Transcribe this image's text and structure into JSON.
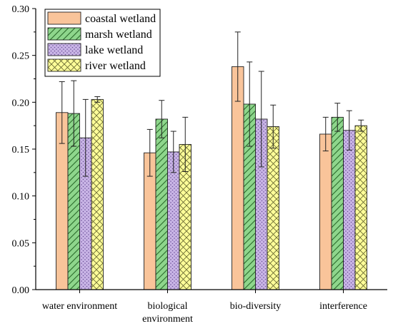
{
  "chart_data": {
    "type": "bar",
    "title": "",
    "xlabel": "",
    "ylabel": "",
    "categories": [
      [
        "water environment"
      ],
      [
        "biological",
        "environment"
      ],
      [
        "bio-diversity"
      ],
      [
        "interference"
      ]
    ],
    "ylim": [
      0.0,
      0.3
    ],
    "yticks": [
      "0.00",
      "0.05",
      "0.10",
      "0.15",
      "0.20",
      "0.25",
      "0.30"
    ],
    "legend_position": "top-left",
    "grid": false,
    "series": [
      {
        "name": "coastal wetland",
        "color": "#f9c49a",
        "pattern": "solid",
        "values": [
          0.189,
          0.146,
          0.238,
          0.166
        ],
        "errors": [
          0.033,
          0.025,
          0.037,
          0.018
        ]
      },
      {
        "name": "marsh wetland",
        "color": "#8ed68c",
        "pattern": "diagonal-hatch",
        "values": [
          0.188,
          0.182,
          0.198,
          0.184
        ],
        "errors": [
          0.035,
          0.02,
          0.045,
          0.015
        ]
      },
      {
        "name": "lake wetland",
        "color": "#c9b5e6",
        "pattern": "dots",
        "values": [
          0.162,
          0.147,
          0.182,
          0.17
        ],
        "errors": [
          0.041,
          0.022,
          0.051,
          0.021
        ]
      },
      {
        "name": "river wetland",
        "color": "#ffff99",
        "pattern": "crosshatch",
        "values": [
          0.203,
          0.155,
          0.174,
          0.175
        ],
        "errors": [
          0.003,
          0.029,
          0.023,
          0.006
        ]
      }
    ]
  }
}
